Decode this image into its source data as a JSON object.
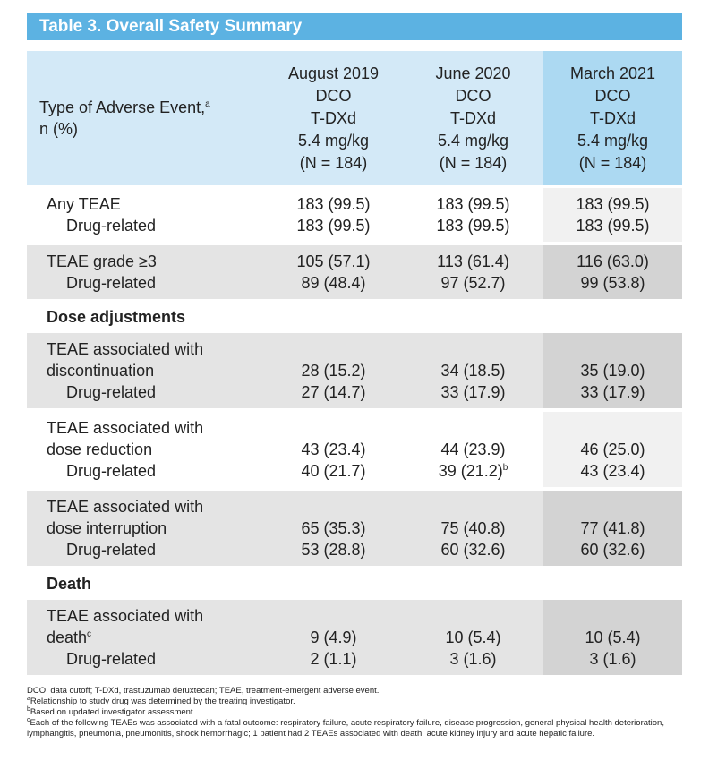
{
  "title": "Table 3. Overall Safety Summary",
  "table": {
    "header": {
      "label": [
        "Type of Adverse Event,",
        "n (%)"
      ],
      "label_note": "a",
      "columns": [
        [
          "August 2019",
          "DCO",
          "T-DXd",
          "5.4 mg/kg",
          "(N = 184)"
        ],
        [
          "June 2020",
          "DCO",
          "T-DXd",
          "5.4 mg/kg",
          "(N = 184)"
        ],
        [
          "March 2021",
          "DCO",
          "T-DXd",
          "5.4 mg/kg",
          "(N = 184)"
        ]
      ]
    },
    "blocks": [
      {
        "shaded": false,
        "rows": [
          {
            "label": [
              "Any TEAE"
            ],
            "values": [
              "183 (99.5)",
              "183 (99.5)",
              "183 (99.5)"
            ]
          },
          {
            "label": [
              "Drug-related"
            ],
            "values": [
              "183 (99.5)",
              "183 (99.5)",
              "183 (99.5)"
            ]
          }
        ]
      },
      {
        "shaded": true,
        "rows": [
          {
            "label": [
              "TEAE grade ≥3"
            ],
            "values": [
              "105 (57.1)",
              "113 (61.4)",
              "116 (63.0)"
            ]
          },
          {
            "label": [
              "Drug-related"
            ],
            "values": [
              "89 (48.4)",
              "97 (52.7)",
              "99 (53.8)"
            ]
          }
        ]
      },
      {
        "heading": "Dose adjustments"
      },
      {
        "shaded": true,
        "rows": [
          {
            "label": [
              "TEAE associated with",
              "discontinuation"
            ],
            "values": [
              "28 (15.2)",
              "34 (18.5)",
              "35 (19.0)"
            ]
          },
          {
            "label": [
              "Drug-related"
            ],
            "values": [
              "27 (14.7)",
              "33 (17.9)",
              "33 (17.9)"
            ]
          }
        ]
      },
      {
        "shaded": false,
        "rows": [
          {
            "label": [
              "TEAE associated with",
              "dose reduction"
            ],
            "values": [
              "43 (23.4)",
              "44 (23.9)",
              "46 (25.0)"
            ]
          },
          {
            "label": [
              "Drug-related"
            ],
            "values": [
              "40 (21.7)",
              {
                "text": "39 (21.2)",
                "note": "b"
              },
              "43 (23.4)"
            ]
          }
        ]
      },
      {
        "shaded": true,
        "rows": [
          {
            "label": [
              "TEAE associated with",
              "dose interruption"
            ],
            "values": [
              "65 (35.3)",
              "75 (40.8)",
              "77 (41.8)"
            ]
          },
          {
            "label": [
              "Drug-related"
            ],
            "values": [
              "53 (28.8)",
              "60 (32.6)",
              "60 (32.6)"
            ]
          }
        ]
      },
      {
        "heading": "Death"
      },
      {
        "shaded": true,
        "rows": [
          {
            "label": [
              "TEAE associated with",
              "death"
            ],
            "label_note": "c",
            "values": [
              "9 (4.9)",
              "10 (5.4)",
              "10 (5.4)"
            ]
          },
          {
            "label": [
              "Drug-related"
            ],
            "values": [
              "2 (1.1)",
              "3 (1.6)",
              "3 (1.6)"
            ]
          }
        ]
      }
    ]
  },
  "footnotes": [
    {
      "text": "DCO, data cutoff; T-DXd, trastuzumab deruxtecan; TEAE, treatment-emergent adverse event."
    },
    {
      "mark": "a",
      "text": "Relationship to study drug was determined by the treating investigator."
    },
    {
      "mark": "b",
      "text": "Based on updated investigator assessment."
    },
    {
      "mark": "c",
      "text": "Each of the following TEAEs was associated with a fatal outcome: respiratory failure, acute respiratory failure, disease progression, general physical health deterioration, lymphangitis, pneumonia, pneumonitis, shock hemorrhagic; 1 patient had 2 TEAEs associated with death: acute kidney injury and acute hepatic failure."
    }
  ]
}
